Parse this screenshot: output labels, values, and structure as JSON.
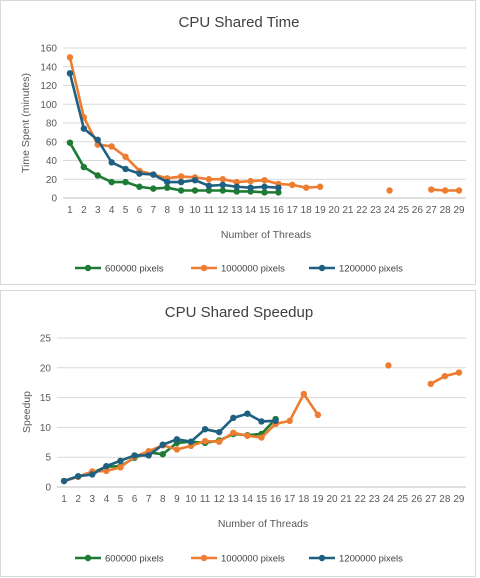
{
  "colors": {
    "s600k": "#1e7b34",
    "s1000k": "#ed7d31",
    "s1200k": "#1f5f7f",
    "grid": "#d9d9d9",
    "axis": "#bfbfbf"
  },
  "charts": [
    {
      "type": "line",
      "title": "CPU Shared Time",
      "xlabel": "Number of Threads",
      "ylabel": "Time Spent (minutes)",
      "ylim": [
        0,
        160
      ],
      "yticks": [
        0,
        20,
        40,
        60,
        80,
        100,
        120,
        140,
        160
      ],
      "categories": [
        1,
        2,
        3,
        4,
        5,
        6,
        7,
        8,
        9,
        10,
        11,
        12,
        13,
        14,
        15,
        16,
        17,
        18,
        19,
        20,
        21,
        22,
        23,
        24,
        25,
        26,
        27,
        28,
        29
      ],
      "grid": true,
      "legend_position": "bottom",
      "series": [
        {
          "name": "600000 pixels",
          "color": "#1e7b34",
          "values": [
            59,
            33,
            24,
            17,
            17,
            12,
            10,
            11,
            8,
            8,
            8,
            8,
            7,
            7,
            6,
            6,
            null,
            null,
            null,
            null,
            null,
            null,
            null,
            null,
            null,
            null,
            null,
            null,
            null
          ]
        },
        {
          "name": "1000000 pixels",
          "color": "#ed7d31",
          "values": [
            150,
            86,
            57,
            55,
            44,
            29,
            25,
            21,
            23,
            22,
            20,
            20,
            17,
            18,
            19,
            15,
            14,
            11,
            12,
            null,
            null,
            null,
            null,
            8,
            null,
            null,
            9,
            8,
            8
          ]
        },
        {
          "name": "1200000 pixels",
          "color": "#1f5f7f",
          "values": [
            133,
            74,
            62,
            38,
            31,
            26,
            25,
            17,
            17,
            19,
            13,
            14,
            12,
            11,
            12,
            11,
            null,
            null,
            null,
            null,
            null,
            null,
            null,
            null,
            null,
            null,
            null,
            null,
            null
          ]
        }
      ]
    },
    {
      "type": "line",
      "title": "CPU Shared Speedup",
      "xlabel": "Number of Threads",
      "ylabel": "Speedup",
      "ylim": [
        0,
        25
      ],
      "yticks": [
        0,
        5,
        10,
        15,
        20,
        25
      ],
      "categories": [
        1,
        2,
        3,
        4,
        5,
        6,
        7,
        8,
        9,
        10,
        11,
        12,
        13,
        14,
        15,
        16,
        17,
        18,
        19,
        20,
        21,
        22,
        23,
        24,
        25,
        26,
        27,
        28,
        29
      ],
      "grid": true,
      "legend_position": "bottom",
      "series": [
        {
          "name": "600000 pixels",
          "color": "#1e7b34",
          "values": [
            1,
            1.8,
            2.4,
            3.4,
            3.5,
            4.9,
            5.8,
            5.5,
            7.4,
            7.6,
            7.4,
            7.8,
            8.9,
            8.7,
            8.9,
            11.4,
            null,
            null,
            null,
            null,
            null,
            null,
            null,
            null,
            null,
            null,
            null,
            null,
            null
          ]
        },
        {
          "name": "1000000 pixels",
          "color": "#ed7d31",
          "values": [
            1,
            1.7,
            2.6,
            2.7,
            3.3,
            5.1,
            6,
            7,
            6.3,
            6.9,
            7.7,
            7.6,
            9.1,
            8.6,
            8.3,
            10.6,
            11.1,
            15.6,
            12.1,
            null,
            null,
            null,
            null,
            20.4,
            null,
            null,
            17.3,
            18.6,
            19.2
          ]
        },
        {
          "name": "1200000 pixels",
          "color": "#1f5f7f",
          "values": [
            1,
            1.8,
            2.1,
            3.5,
            4.4,
            5.3,
            5.3,
            7.1,
            8,
            7.6,
            9.7,
            9.2,
            11.6,
            12.3,
            11,
            11.1,
            null,
            null,
            null,
            null,
            null,
            null,
            null,
            null,
            null,
            null,
            null,
            null,
            null
          ]
        }
      ]
    }
  ]
}
